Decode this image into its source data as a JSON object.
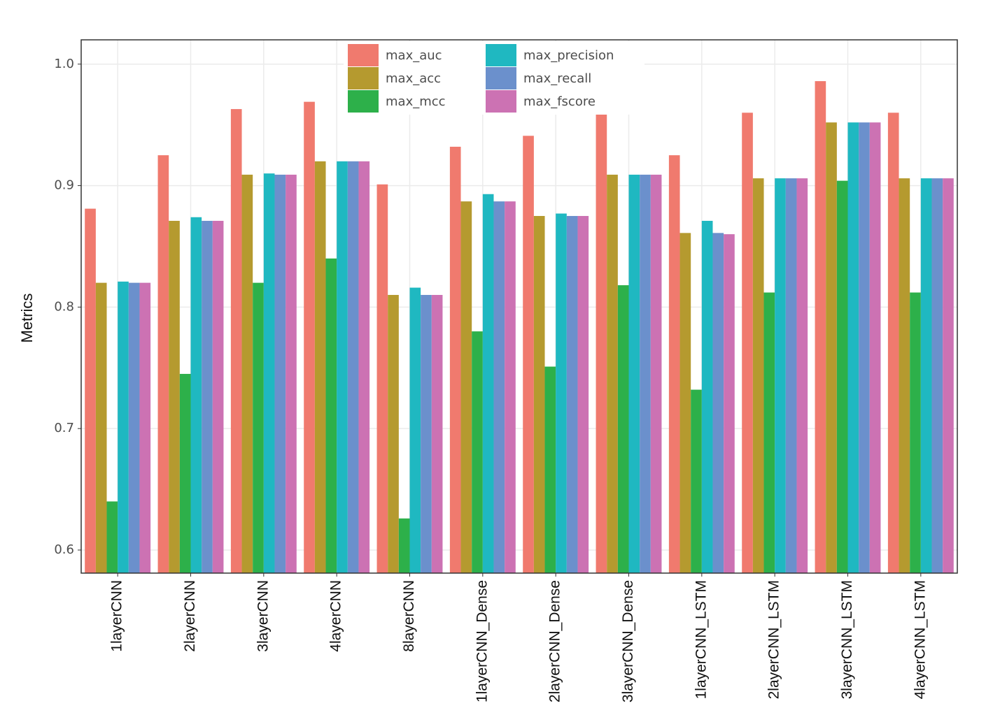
{
  "chart_data": {
    "type": "bar",
    "y_label": "Metrics",
    "categories": [
      "1layerCNN",
      "2layerCNN",
      "3layerCNN",
      "4layerCNN",
      "8layerCNN",
      "1layerCNN_Dense",
      "2layerCNN_Dense",
      "3layerCNN_Dense",
      "1layerCNN_LSTM",
      "2layerCNN_LSTM",
      "3layerCNN_LSTM",
      "4layerCNN_LSTM"
    ],
    "series": [
      {
        "name": "max_auc",
        "color": "#f07a6e",
        "values": [
          0.881,
          0.925,
          0.963,
          0.969,
          0.901,
          0.932,
          0.941,
          0.961,
          0.925,
          0.96,
          0.986,
          0.96
        ]
      },
      {
        "name": "max_acc",
        "color": "#b59a2f",
        "values": [
          0.82,
          0.871,
          0.909,
          0.92,
          0.81,
          0.887,
          0.875,
          0.909,
          0.861,
          0.906,
          0.952,
          0.906
        ]
      },
      {
        "name": "max_mcc",
        "color": "#2db04a",
        "values": [
          0.64,
          0.745,
          0.82,
          0.84,
          0.626,
          0.78,
          0.751,
          0.818,
          0.732,
          0.812,
          0.904,
          0.812
        ]
      },
      {
        "name": "max_precision",
        "color": "#1fb8c1",
        "values": [
          0.821,
          0.874,
          0.91,
          0.92,
          0.816,
          0.893,
          0.877,
          0.909,
          0.871,
          0.906,
          0.952,
          0.906
        ]
      },
      {
        "name": "max_recall",
        "color": "#6b90cc",
        "values": [
          0.82,
          0.871,
          0.909,
          0.92,
          0.81,
          0.887,
          0.875,
          0.909,
          0.861,
          0.906,
          0.952,
          0.906
        ]
      },
      {
        "name": "max_fscore",
        "color": "#cc72b3",
        "values": [
          0.82,
          0.871,
          0.909,
          0.92,
          0.81,
          0.887,
          0.875,
          0.909,
          0.86,
          0.906,
          0.952,
          0.906
        ]
      }
    ],
    "ylim": [
      0.581,
      1.02
    ],
    "yticks": [
      0.6,
      0.7,
      0.8,
      0.9,
      {
        "value": 1,
        "label": "1.0"
      }
    ],
    "grid": true,
    "legend_position": "top"
  }
}
